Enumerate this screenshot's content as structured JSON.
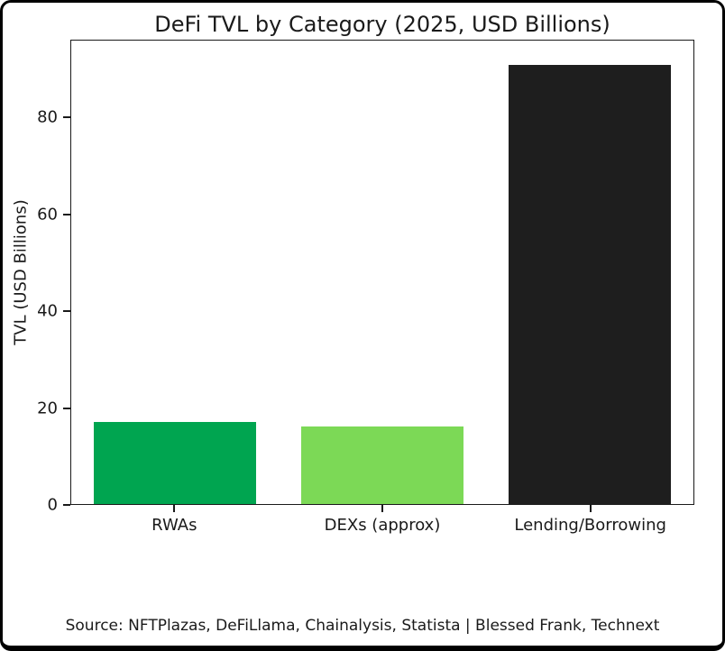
{
  "chart_data": {
    "type": "bar",
    "title": "DeFi TVL by Category (2025, USD Billions)",
    "categories": [
      "RWAs",
      "DEXs (approx)",
      "Lending/Borrowing"
    ],
    "values": [
      17,
      16,
      91
    ],
    "bar_colors": [
      "#00a550",
      "#7cd956",
      "#1e1e1e"
    ],
    "xlabel": "",
    "ylabel": "TVL (USD Billions)",
    "ylim": [
      0,
      96
    ],
    "yticks": [
      0,
      20,
      40,
      60,
      80
    ],
    "grid": false,
    "legend": "none"
  },
  "footer": {
    "source": "Source: NFTPlazas, DeFiLlama, Chainalysis, Statista | Blessed Frank, Technext"
  }
}
